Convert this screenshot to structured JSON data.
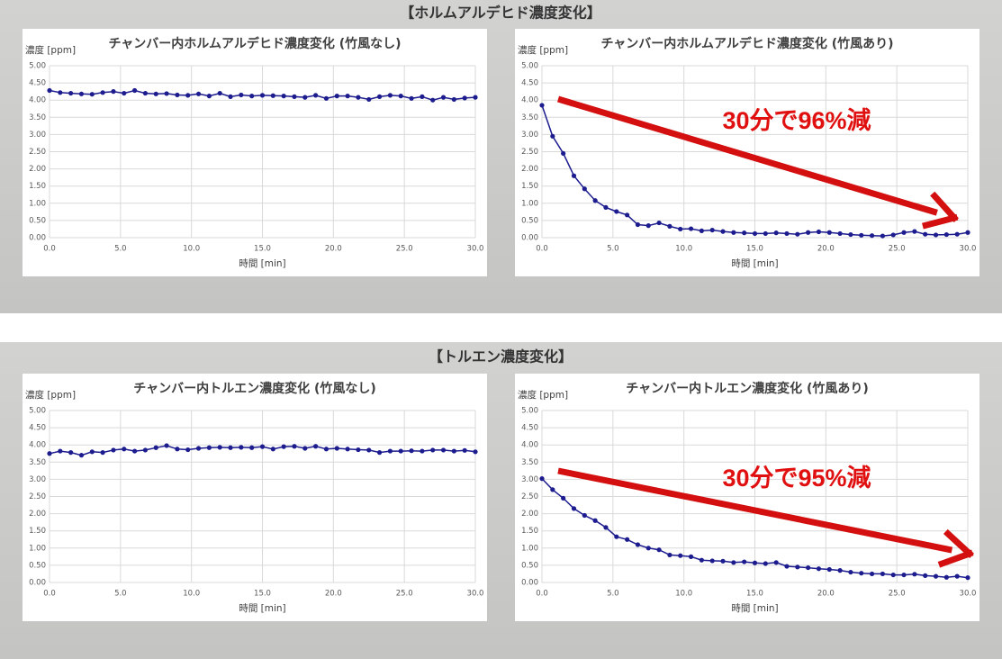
{
  "headers": [
    "【ホルムアルデヒド濃度変化】",
    "【トルエン濃度変化】"
  ],
  "chart_data": [
    {
      "type": "line",
      "title": "チャンバー内ホルムアルデヒド濃度変化 (竹風なし)",
      "y_label": "濃度 [ppm]",
      "x_label": "時間 [min]",
      "color": "#1c1c8f",
      "x": [
        0,
        0.75,
        1.5,
        2.25,
        3,
        3.75,
        4.5,
        5.25,
        6,
        6.75,
        7.5,
        8.25,
        9,
        9.75,
        10.5,
        11.25,
        12,
        12.75,
        13.5,
        14.25,
        15,
        15.75,
        16.5,
        17.25,
        18,
        18.75,
        19.5,
        20.25,
        21,
        21.75,
        22.5,
        23.25,
        24,
        24.75,
        25.5,
        26.25,
        27,
        27.75,
        28.5,
        29.25,
        30
      ],
      "values": [
        4.28,
        4.22,
        4.2,
        4.18,
        4.17,
        4.22,
        4.25,
        4.2,
        4.28,
        4.2,
        4.18,
        4.19,
        4.15,
        4.14,
        4.18,
        4.12,
        4.2,
        4.1,
        4.15,
        4.12,
        4.14,
        4.13,
        4.12,
        4.1,
        4.08,
        4.14,
        4.05,
        4.12,
        4.12,
        4.08,
        4.02,
        4.1,
        4.14,
        4.12,
        4.05,
        4.1,
        4.0,
        4.08,
        4.02,
        4.06,
        4.08
      ],
      "xlim": [
        0,
        30
      ],
      "ylim": [
        0,
        5
      ],
      "xticks": [
        {
          "value": 0,
          "label": "0.0"
        },
        {
          "value": 5,
          "label": "5.0"
        },
        {
          "value": 10,
          "label": "10.0"
        },
        {
          "value": 15,
          "label": "15.0"
        },
        {
          "value": 20,
          "label": "20.0"
        },
        {
          "value": 25,
          "label": "25.0"
        },
        {
          "value": 30,
          "label": "30.0"
        }
      ],
      "yticks": [
        {
          "value": 0,
          "label": "0.00"
        },
        {
          "value": 0.5,
          "label": "0.50"
        },
        {
          "value": 1,
          "label": "1.00"
        },
        {
          "value": 1.5,
          "label": "1.50"
        },
        {
          "value": 2,
          "label": "2.00"
        },
        {
          "value": 2.5,
          "label": "2.50"
        },
        {
          "value": 3,
          "label": "3.00"
        },
        {
          "value": 3.5,
          "label": "3.50"
        },
        {
          "value": 4,
          "label": "4.00"
        },
        {
          "value": 4.5,
          "label": "4.50"
        },
        {
          "value": 5,
          "label": "5.00"
        }
      ],
      "grid": true
    },
    {
      "type": "line",
      "title": "チャンバー内ホルムアルデヒド濃度変化 (竹風あり)",
      "y_label": "濃度 [ppm]",
      "x_label": "時間 [min]",
      "color": "#1c1c8f",
      "annotation": "30分で96%減",
      "x": [
        0,
        0.75,
        1.5,
        2.25,
        3,
        3.75,
        4.5,
        5.25,
        6,
        6.75,
        7.5,
        8.25,
        9,
        9.75,
        10.5,
        11.25,
        12,
        12.75,
        13.5,
        14.25,
        15,
        15.75,
        16.5,
        17.25,
        18,
        18.75,
        19.5,
        20.25,
        21,
        21.75,
        22.5,
        23.25,
        24,
        24.75,
        25.5,
        26.25,
        27,
        27.75,
        28.5,
        29.25,
        30
      ],
      "values": [
        3.85,
        2.95,
        2.45,
        1.8,
        1.42,
        1.08,
        0.88,
        0.76,
        0.66,
        0.38,
        0.35,
        0.43,
        0.33,
        0.25,
        0.26,
        0.2,
        0.22,
        0.18,
        0.15,
        0.14,
        0.12,
        0.12,
        0.14,
        0.12,
        0.1,
        0.15,
        0.17,
        0.15,
        0.12,
        0.09,
        0.07,
        0.06,
        0.05,
        0.08,
        0.15,
        0.18,
        0.1,
        0.08,
        0.09,
        0.1,
        0.15
      ],
      "xlim": [
        0,
        30
      ],
      "ylim": [
        0,
        5
      ],
      "xticks": [
        {
          "value": 0,
          "label": "0.0"
        },
        {
          "value": 5,
          "label": "5.0"
        },
        {
          "value": 10,
          "label": "10.0"
        },
        {
          "value": 15,
          "label": "15.0"
        },
        {
          "value": 20,
          "label": "20.0"
        },
        {
          "value": 25,
          "label": "25.0"
        },
        {
          "value": 30,
          "label": "30.0"
        }
      ],
      "yticks": [
        {
          "value": 0,
          "label": "0.00"
        },
        {
          "value": 0.5,
          "label": "0.50"
        },
        {
          "value": 1,
          "label": "1.00"
        },
        {
          "value": 1.5,
          "label": "1.50"
        },
        {
          "value": 2,
          "label": "2.00"
        },
        {
          "value": 2.5,
          "label": "2.50"
        },
        {
          "value": 3,
          "label": "3.00"
        },
        {
          "value": 3.5,
          "label": "3.50"
        },
        {
          "value": 4,
          "label": "4.00"
        },
        {
          "value": 4.5,
          "label": "4.50"
        },
        {
          "value": 5,
          "label": "5.00"
        }
      ],
      "grid": true
    },
    {
      "type": "line",
      "title": "チャンバー内トルエン濃度変化 (竹風なし)",
      "y_label": "濃度 [ppm]",
      "x_label": "時間 [min]",
      "color": "#1c1c8f",
      "x": [
        0,
        0.75,
        1.5,
        2.25,
        3,
        3.75,
        4.5,
        5.25,
        6,
        6.75,
        7.5,
        8.25,
        9,
        9.75,
        10.5,
        11.25,
        12,
        12.75,
        13.5,
        14.25,
        15,
        15.75,
        16.5,
        17.25,
        18,
        18.75,
        19.5,
        20.25,
        21,
        21.75,
        22.5,
        23.25,
        24,
        24.75,
        25.5,
        26.25,
        27,
        27.75,
        28.5,
        29.25,
        30
      ],
      "values": [
        3.75,
        3.82,
        3.78,
        3.7,
        3.8,
        3.78,
        3.85,
        3.88,
        3.82,
        3.85,
        3.92,
        3.98,
        3.88,
        3.86,
        3.9,
        3.92,
        3.93,
        3.92,
        3.93,
        3.92,
        3.95,
        3.88,
        3.95,
        3.96,
        3.9,
        3.96,
        3.88,
        3.9,
        3.88,
        3.86,
        3.85,
        3.78,
        3.82,
        3.82,
        3.83,
        3.82,
        3.85,
        3.85,
        3.82,
        3.84,
        3.8
      ],
      "xlim": [
        0,
        30
      ],
      "ylim": [
        0,
        5
      ],
      "xticks": [
        {
          "value": 0,
          "label": "0.0"
        },
        {
          "value": 5,
          "label": "5.0"
        },
        {
          "value": 10,
          "label": "10.0"
        },
        {
          "value": 15,
          "label": "15.0"
        },
        {
          "value": 20,
          "label": "20.0"
        },
        {
          "value": 25,
          "label": "25.0"
        },
        {
          "value": 30,
          "label": "30.0"
        }
      ],
      "yticks": [
        {
          "value": 0,
          "label": "0.00"
        },
        {
          "value": 0.5,
          "label": "0.50"
        },
        {
          "value": 1,
          "label": "1.00"
        },
        {
          "value": 1.5,
          "label": "1.50"
        },
        {
          "value": 2,
          "label": "2.00"
        },
        {
          "value": 2.5,
          "label": "2.50"
        },
        {
          "value": 3,
          "label": "3.00"
        },
        {
          "value": 3.5,
          "label": "3.50"
        },
        {
          "value": 4,
          "label": "4.00"
        },
        {
          "value": 4.5,
          "label": "4.50"
        },
        {
          "value": 5,
          "label": "5.00"
        }
      ],
      "grid": true
    },
    {
      "type": "line",
      "title": "チャンバー内トルエン濃度変化 (竹風あり)",
      "y_label": "濃度 [ppm]",
      "x_label": "時間 [min]",
      "color": "#1c1c8f",
      "annotation": "30分で95%減",
      "x": [
        0,
        0.75,
        1.5,
        2.25,
        3,
        3.75,
        4.5,
        5.25,
        6,
        6.75,
        7.5,
        8.25,
        9,
        9.75,
        10.5,
        11.25,
        12,
        12.75,
        13.5,
        14.25,
        15,
        15.75,
        16.5,
        17.25,
        18,
        18.75,
        19.5,
        20.25,
        21,
        21.75,
        22.5,
        23.25,
        24,
        24.75,
        25.5,
        26.25,
        27,
        27.75,
        28.5,
        29.25,
        30
      ],
      "values": [
        3.02,
        2.7,
        2.45,
        2.15,
        1.95,
        1.8,
        1.6,
        1.33,
        1.25,
        1.1,
        1.0,
        0.95,
        0.8,
        0.78,
        0.75,
        0.65,
        0.63,
        0.62,
        0.58,
        0.6,
        0.57,
        0.55,
        0.58,
        0.47,
        0.45,
        0.43,
        0.4,
        0.38,
        0.35,
        0.3,
        0.27,
        0.25,
        0.25,
        0.22,
        0.22,
        0.24,
        0.2,
        0.18,
        0.15,
        0.18,
        0.14
      ],
      "xlim": [
        0,
        30
      ],
      "ylim": [
        0,
        5
      ],
      "xticks": [
        {
          "value": 0,
          "label": "0.0"
        },
        {
          "value": 5,
          "label": "5.0"
        },
        {
          "value": 10,
          "label": "10.0"
        },
        {
          "value": 15,
          "label": "15.0"
        },
        {
          "value": 20,
          "label": "20.0"
        },
        {
          "value": 25,
          "label": "25.0"
        },
        {
          "value": 30,
          "label": "30.0"
        }
      ],
      "yticks": [
        {
          "value": 0,
          "label": "0.00"
        },
        {
          "value": 0.5,
          "label": "0.50"
        },
        {
          "value": 1,
          "label": "1.00"
        },
        {
          "value": 1.5,
          "label": "1.50"
        },
        {
          "value": 2,
          "label": "2.00"
        },
        {
          "value": 2.5,
          "label": "2.50"
        },
        {
          "value": 3,
          "label": "3.00"
        },
        {
          "value": 3.5,
          "label": "3.50"
        },
        {
          "value": 4,
          "label": "4.00"
        },
        {
          "value": 4.5,
          "label": "4.50"
        },
        {
          "value": 5,
          "label": "5.00"
        }
      ],
      "grid": true
    }
  ]
}
